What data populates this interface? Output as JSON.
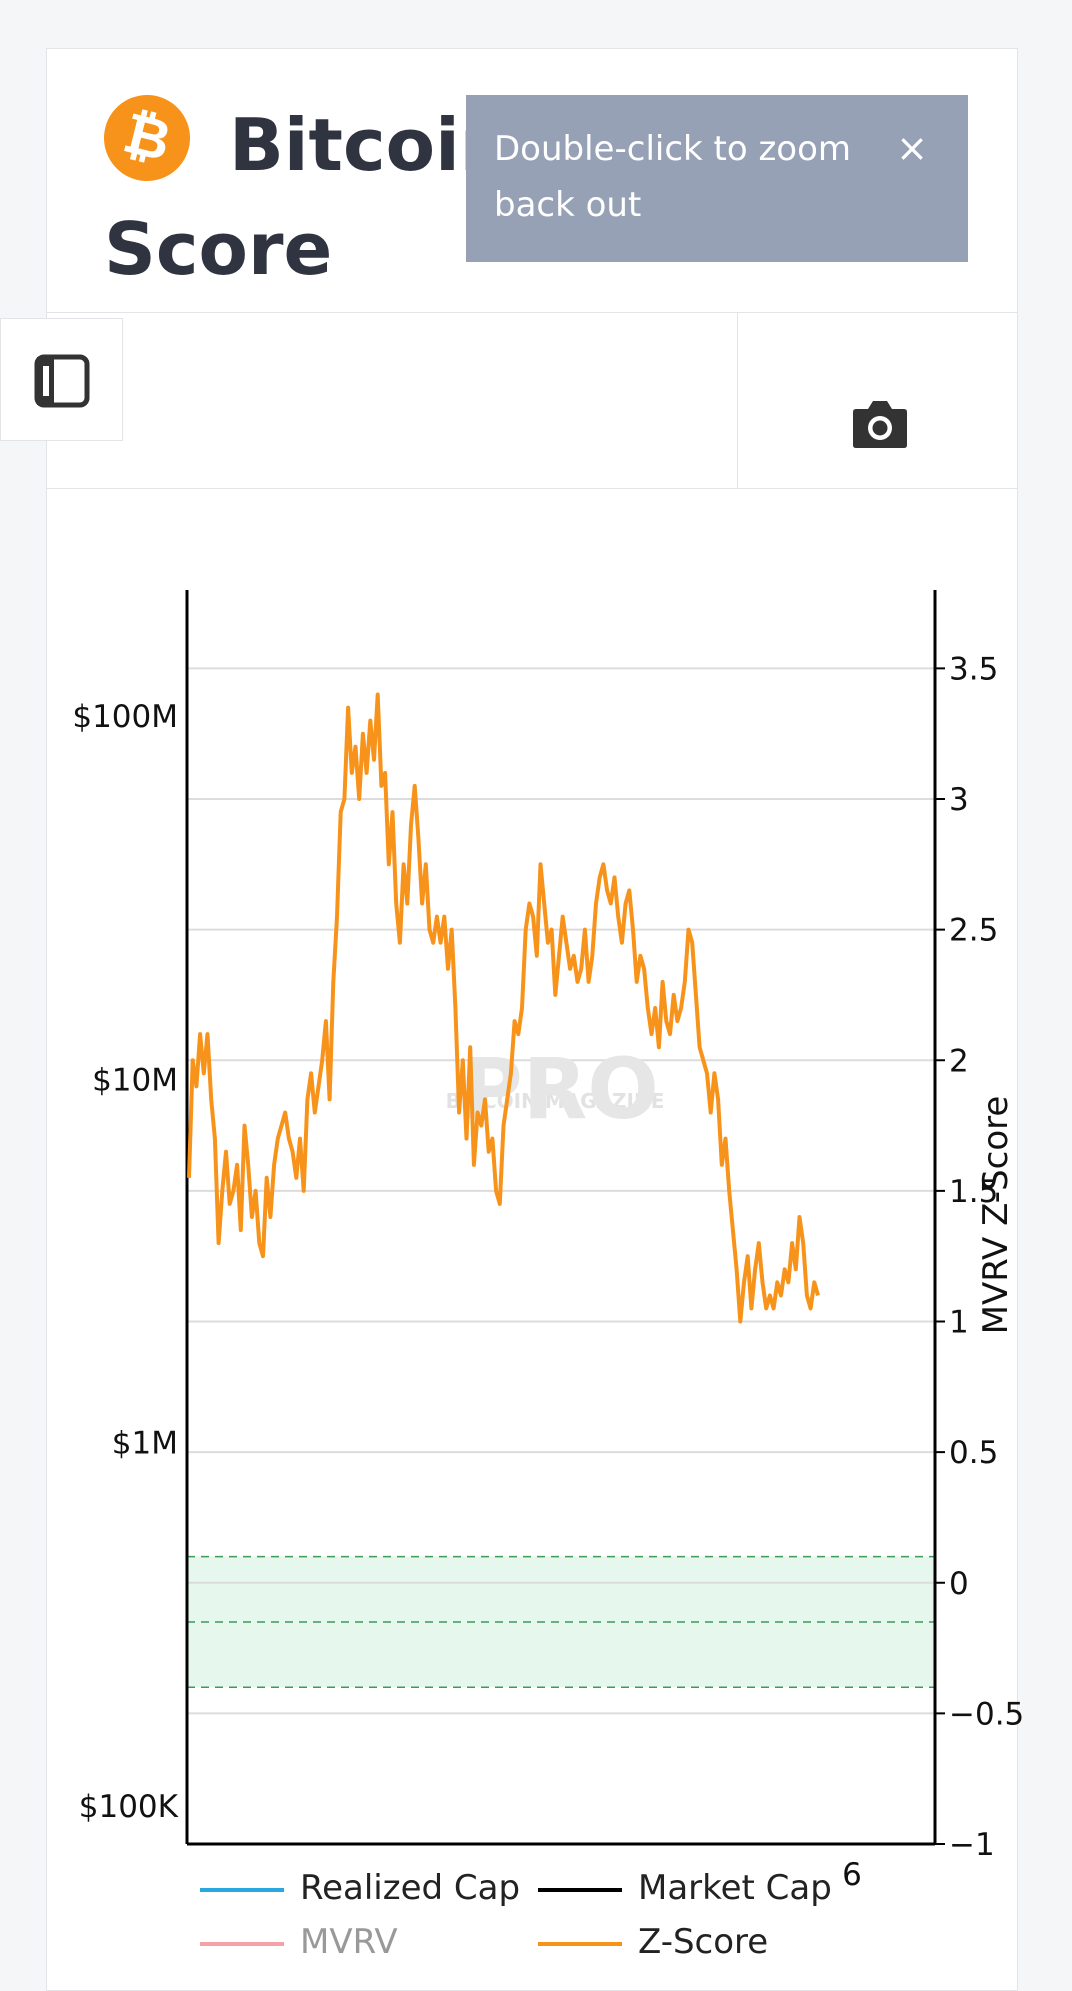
{
  "page": {
    "title": "Bitcoin: MVRV Z-Score",
    "logo_symbol": "₿",
    "tooltip": "Double-click to zoom back out",
    "tooltip_close": "×",
    "icons": [
      "sidebar-toggle-icon",
      "camera-icon",
      "close-icon"
    ],
    "colors": {
      "bitcoin_orange": "#f7931a",
      "tooltip_bg": "#97a1b6",
      "green_zone": "#e6f7ee"
    }
  },
  "chart_data": {
    "type": "line",
    "watermark": "BITCOIN MAGAZINE PRO",
    "stray_label": "6",
    "left_axis": {
      "scale": "log",
      "ticks": [
        "$100K",
        "$1M",
        "$10M",
        "$100M"
      ],
      "tick_values": [
        100000,
        1000000,
        10000000,
        100000000
      ]
    },
    "right_axis": {
      "label": "MVRV Z-Score",
      "ticks": [
        "−1",
        "−0.5",
        "0",
        "0.5",
        "1",
        "1.5",
        "2",
        "2.5",
        "3",
        "3.5"
      ],
      "ylim": [
        -1,
        3.8
      ]
    },
    "green_band": [
      -0.4,
      0.1
    ],
    "grid": true,
    "legend": {
      "placement": "bottom",
      "items": [
        {
          "name": "Realized Cap",
          "color": "#29a8e0",
          "dimmed": false
        },
        {
          "name": "Market Cap",
          "color": "#000000",
          "dimmed": false
        },
        {
          "name": "MVRV",
          "color": "#f4a1a8",
          "dimmed": true
        },
        {
          "name": "Z-Score",
          "color": "#f7931a",
          "dimmed": false
        }
      ]
    },
    "series": [
      {
        "name": "Z-Score",
        "axis": "right",
        "color": "#f7931a",
        "x": [
          0,
          1,
          2,
          3,
          4,
          5,
          6,
          7,
          8,
          9,
          10,
          11,
          12,
          13,
          14,
          15,
          16,
          17,
          18,
          19,
          20,
          21,
          22,
          23,
          24,
          25,
          26,
          27,
          28,
          29,
          30,
          31,
          32,
          33,
          34,
          35,
          36,
          37,
          38,
          39,
          40,
          41,
          42,
          43,
          44,
          45,
          46,
          47,
          48,
          49,
          50,
          51,
          52,
          53,
          54,
          55,
          56,
          57,
          58,
          59,
          60,
          61,
          62,
          63,
          64,
          65,
          66,
          67,
          68,
          69,
          70,
          71,
          72,
          73,
          74,
          75,
          76,
          77,
          78,
          79,
          80,
          81,
          82,
          83,
          84,
          85,
          86,
          87,
          88,
          89,
          90,
          91,
          92,
          93,
          94,
          95,
          96,
          97,
          98,
          99,
          100,
          101,
          102,
          103,
          104,
          105,
          106,
          107,
          108,
          109,
          110,
          111,
          112,
          113,
          114,
          115,
          116,
          117,
          118,
          119,
          120,
          121,
          122,
          123,
          124,
          125,
          126,
          127,
          128,
          129,
          130,
          131,
          132,
          133,
          134,
          135,
          136,
          137,
          138,
          139,
          140,
          141,
          142,
          143,
          144,
          145,
          146,
          147,
          148,
          149,
          150,
          151,
          152,
          153,
          154,
          155,
          156,
          157,
          158,
          159,
          160,
          161,
          162,
          163,
          164,
          165,
          166,
          167,
          168,
          169,
          170
        ],
        "values": [
          1.55,
          2.0,
          1.9,
          2.1,
          1.95,
          2.1,
          1.85,
          1.7,
          1.3,
          1.5,
          1.65,
          1.45,
          1.5,
          1.6,
          1.35,
          1.75,
          1.6,
          1.4,
          1.5,
          1.3,
          1.25,
          1.55,
          1.4,
          1.6,
          1.7,
          1.75,
          1.8,
          1.7,
          1.65,
          1.55,
          1.7,
          1.5,
          1.85,
          1.95,
          1.8,
          1.9,
          2.0,
          2.15,
          1.85,
          2.3,
          2.55,
          2.95,
          3.0,
          3.35,
          3.1,
          3.2,
          3.0,
          3.25,
          3.1,
          3.3,
          3.15,
          3.4,
          3.05,
          3.1,
          2.75,
          2.95,
          2.6,
          2.45,
          2.75,
          2.6,
          2.9,
          3.05,
          2.85,
          2.6,
          2.75,
          2.5,
          2.45,
          2.55,
          2.45,
          2.55,
          2.35,
          2.5,
          2.2,
          1.8,
          2.0,
          1.7,
          2.05,
          1.6,
          1.8,
          1.75,
          1.85,
          1.65,
          1.7,
          1.5,
          1.45,
          1.75,
          1.85,
          1.95,
          2.15,
          2.1,
          2.2,
          2.5,
          2.6,
          2.55,
          2.4,
          2.75,
          2.6,
          2.45,
          2.5,
          2.25,
          2.4,
          2.55,
          2.45,
          2.35,
          2.4,
          2.3,
          2.35,
          2.5,
          2.3,
          2.4,
          2.6,
          2.7,
          2.75,
          2.65,
          2.6,
          2.7,
          2.55,
          2.45,
          2.6,
          2.65,
          2.5,
          2.3,
          2.4,
          2.35,
          2.2,
          2.1,
          2.2,
          2.05,
          2.3,
          2.15,
          2.1,
          2.25,
          2.15,
          2.2,
          2.3,
          2.5,
          2.45,
          2.25,
          2.05,
          2.0,
          1.95,
          1.8,
          1.95,
          1.85,
          1.6,
          1.7,
          1.5,
          1.35,
          1.2,
          1.0,
          1.15,
          1.25,
          1.05,
          1.2,
          1.3,
          1.15,
          1.05,
          1.1,
          1.05,
          1.15,
          1.1,
          1.2,
          1.15,
          1.3,
          1.2,
          1.4,
          1.3,
          1.1,
          1.05,
          1.15,
          1.1
        ]
      }
    ]
  }
}
